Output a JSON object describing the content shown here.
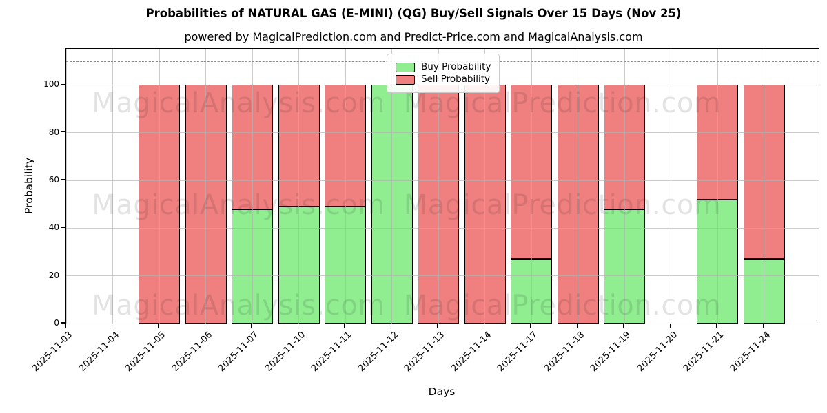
{
  "chart_data": {
    "type": "bar",
    "stacked": true,
    "title": "Probabilities of NATURAL GAS (E-MINI) (QG) Buy/Sell Signals Over 15 Days (Nov 25)",
    "subtitle": "powered by MagicalPrediction.com and Predict-Price.com and MagicalAnalysis.com",
    "xlabel": "Days",
    "ylabel": "Probability",
    "ylim": [
      0,
      115.1
    ],
    "yticks": [
      0,
      20,
      40,
      60,
      80,
      100
    ],
    "hline_dashed_y": 110,
    "grid": true,
    "legend_position": "upper center",
    "categories": [
      "2025-11-03",
      "2025-11-04",
      "2025-11-05",
      "2025-11-06",
      "2025-11-07",
      "2025-11-10",
      "2025-11-11",
      "2025-11-12",
      "2025-11-13",
      "2025-11-14",
      "2025-11-17",
      "2025-11-18",
      "2025-11-19",
      "2025-11-20",
      "2025-11-21",
      "2025-11-24"
    ],
    "series": [
      {
        "name": "Buy Probability",
        "color": "#90EE90",
        "values": [
          null,
          null,
          0,
          0,
          48,
          49,
          49,
          100,
          0,
          0,
          27,
          0,
          48,
          null,
          52,
          27
        ]
      },
      {
        "name": "Sell Probability",
        "color": "#F08080",
        "values": [
          null,
          null,
          100,
          100,
          52,
          51,
          51,
          0,
          100,
          100,
          73,
          100,
          52,
          null,
          48,
          73
        ]
      }
    ],
    "watermarks": {
      "left_text": "MagicalAnalysis.com",
      "right_text": "MagicalPrediction.com"
    },
    "colors": {
      "bar_edge": "#000000",
      "grid": "#b0b0b0",
      "dashed_line": "#8a8a8a"
    }
  }
}
